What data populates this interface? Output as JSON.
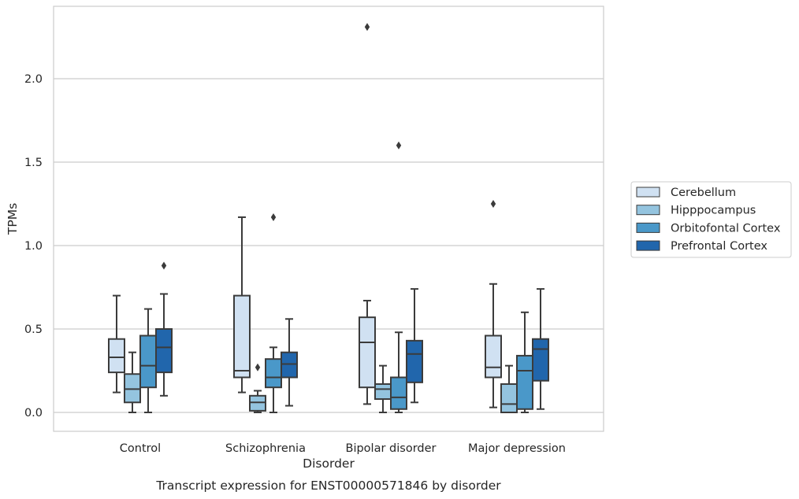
{
  "chart_data": {
    "type": "box",
    "title": "Transcript expression for ENST00000571846 by disorder",
    "xlabel": "Disorder",
    "ylabel": "TPMs",
    "ylim": [
      -0.11,
      2.43
    ],
    "yticks": [
      "0.0",
      "0.5",
      "1.0",
      "1.5",
      "2.0"
    ],
    "grid": "horizontal",
    "legend_position": "right",
    "categories": [
      "Control",
      "Schizophrenia",
      "Bipolar disorder",
      "Major depression"
    ],
    "series": [
      {
        "name": "Cerebellum",
        "color": "#d0e1f2",
        "boxes": [
          {
            "whislo": 0.12,
            "q1": 0.24,
            "med": 0.33,
            "q3": 0.44,
            "whishi": 0.7,
            "fliers": []
          },
          {
            "whislo": 0.12,
            "q1": 0.21,
            "med": 0.25,
            "q3": 0.7,
            "whishi": 1.17,
            "fliers": []
          },
          {
            "whislo": 0.05,
            "q1": 0.15,
            "med": 0.42,
            "q3": 0.57,
            "whishi": 0.67,
            "fliers": [
              2.31
            ]
          },
          {
            "whislo": 0.03,
            "q1": 0.21,
            "med": 0.27,
            "q3": 0.46,
            "whishi": 0.77,
            "fliers": [
              1.25
            ]
          }
        ]
      },
      {
        "name": "Hipppocampus",
        "color": "#94c4df",
        "boxes": [
          {
            "whislo": 0.0,
            "q1": 0.06,
            "med": 0.14,
            "q3": 0.23,
            "whishi": 0.36,
            "fliers": []
          },
          {
            "whislo": 0.0,
            "q1": 0.01,
            "med": 0.06,
            "q3": 0.1,
            "whishi": 0.13,
            "fliers": [
              0.27
            ]
          },
          {
            "whislo": 0.0,
            "q1": 0.08,
            "med": 0.14,
            "q3": 0.17,
            "whishi": 0.28,
            "fliers": []
          },
          {
            "whislo": 0.0,
            "q1": 0.0,
            "med": 0.05,
            "q3": 0.17,
            "whishi": 0.28,
            "fliers": []
          }
        ]
      },
      {
        "name": "Orbitofontal Cortex",
        "color": "#4a98c9",
        "boxes": [
          {
            "whislo": 0.0,
            "q1": 0.15,
            "med": 0.28,
            "q3": 0.46,
            "whishi": 0.62,
            "fliers": []
          },
          {
            "whislo": 0.0,
            "q1": 0.15,
            "med": 0.21,
            "q3": 0.32,
            "whishi": 0.39,
            "fliers": [
              1.17
            ]
          },
          {
            "whislo": 0.0,
            "q1": 0.02,
            "med": 0.09,
            "q3": 0.21,
            "whishi": 0.48,
            "fliers": [
              1.6
            ]
          },
          {
            "whislo": 0.0,
            "q1": 0.02,
            "med": 0.25,
            "q3": 0.34,
            "whishi": 0.6,
            "fliers": []
          }
        ]
      },
      {
        "name": "Prefrontal Cortex",
        "color": "#2166ac",
        "boxes": [
          {
            "whislo": 0.1,
            "q1": 0.24,
            "med": 0.39,
            "q3": 0.5,
            "whishi": 0.71,
            "fliers": [
              0.88
            ]
          },
          {
            "whislo": 0.04,
            "q1": 0.21,
            "med": 0.29,
            "q3": 0.36,
            "whishi": 0.56,
            "fliers": []
          },
          {
            "whislo": 0.06,
            "q1": 0.18,
            "med": 0.35,
            "q3": 0.43,
            "whishi": 0.74,
            "fliers": []
          },
          {
            "whislo": 0.02,
            "q1": 0.19,
            "med": 0.38,
            "q3": 0.44,
            "whishi": 0.74,
            "fliers": []
          }
        ]
      }
    ]
  }
}
